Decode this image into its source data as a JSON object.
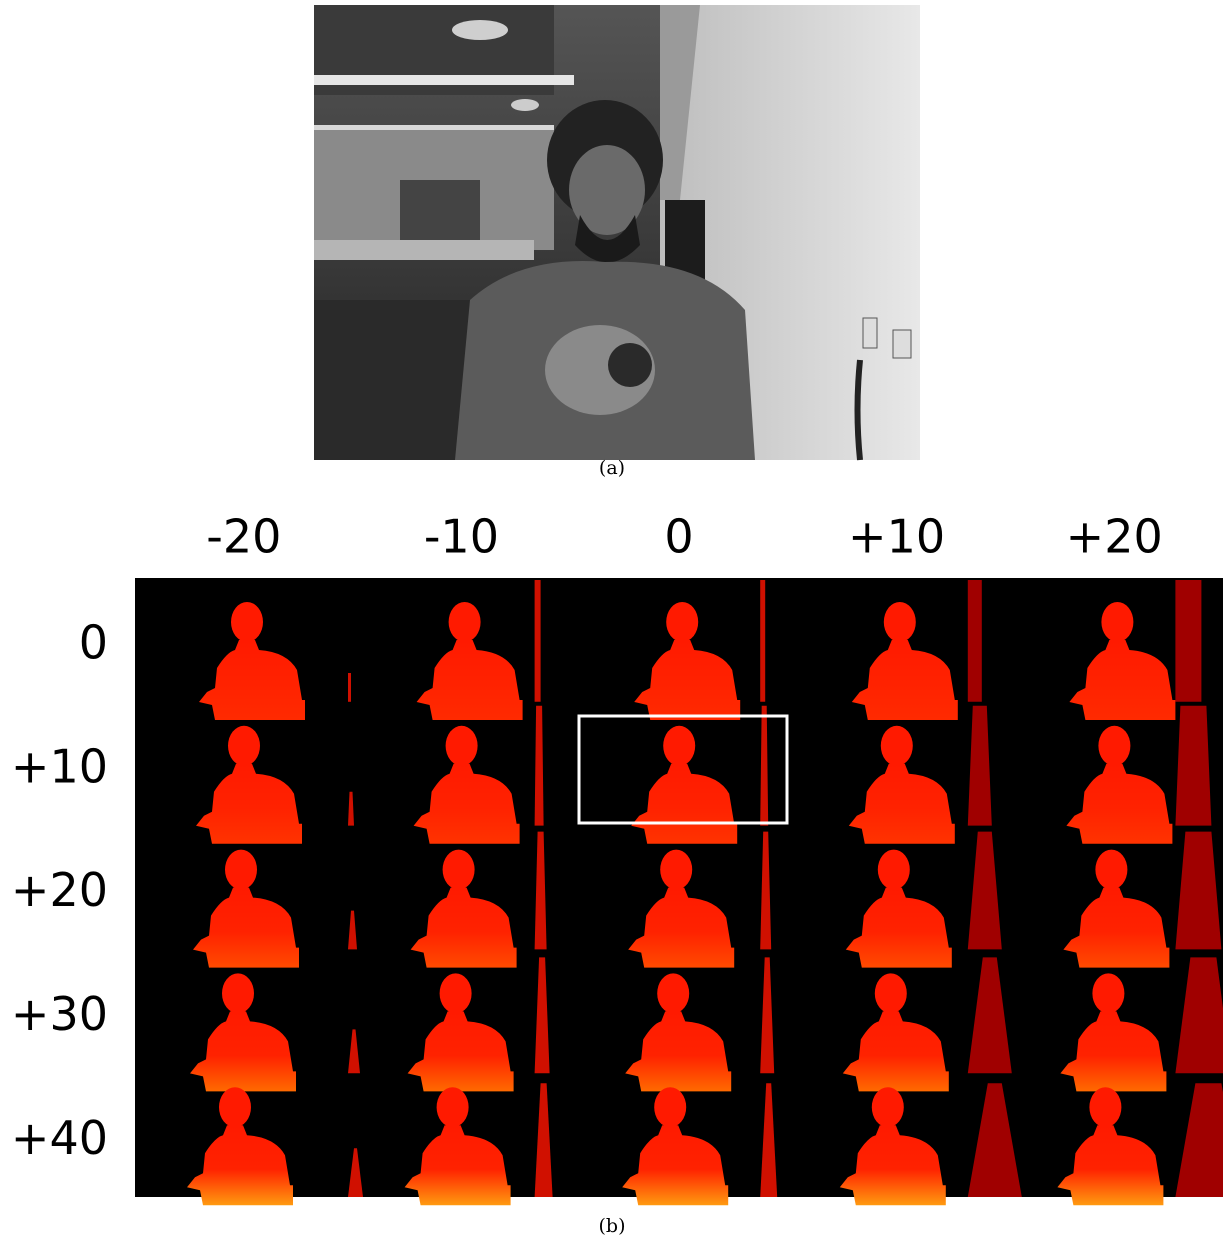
{
  "panel_a": {
    "caption": "(a)"
  },
  "panel_b": {
    "caption": "(b)",
    "columns": [
      "-20",
      "-10",
      "0",
      "+10",
      "+20"
    ],
    "rows": [
      "0",
      "+10",
      "+20",
      "+30",
      "+40"
    ]
  }
}
